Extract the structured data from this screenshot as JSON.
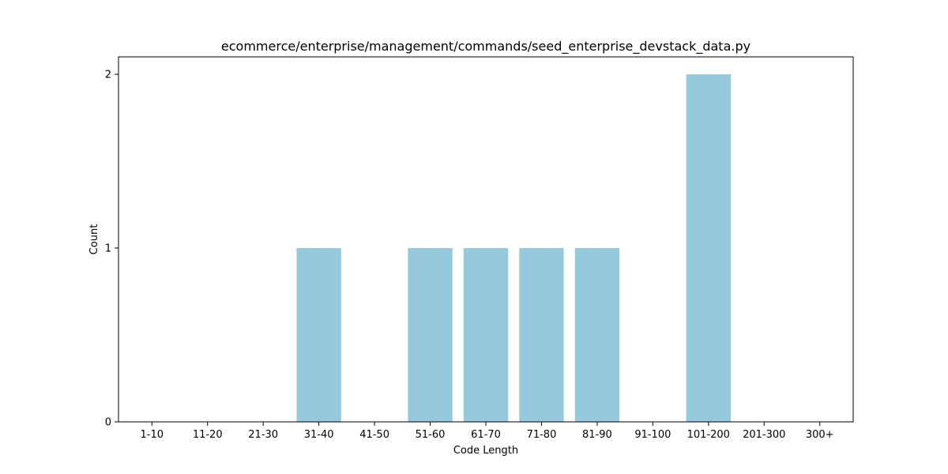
{
  "chart_data": {
    "type": "bar",
    "title": "ecommerce/enterprise/management/commands/seed_enterprise_devstack_data.py",
    "xlabel": "Code Length",
    "ylabel": "Count",
    "categories": [
      "1-10",
      "11-20",
      "21-30",
      "31-40",
      "41-50",
      "51-60",
      "61-70",
      "71-80",
      "81-90",
      "91-100",
      "101-200",
      "201-300",
      "300+"
    ],
    "values": [
      0,
      0,
      0,
      1,
      0,
      1,
      1,
      1,
      1,
      0,
      2,
      0,
      0
    ],
    "yticks": [
      "0",
      "1",
      "2"
    ],
    "ylim": [
      0,
      2.1
    ],
    "grid": false,
    "bar_color": "#96c9dc"
  }
}
